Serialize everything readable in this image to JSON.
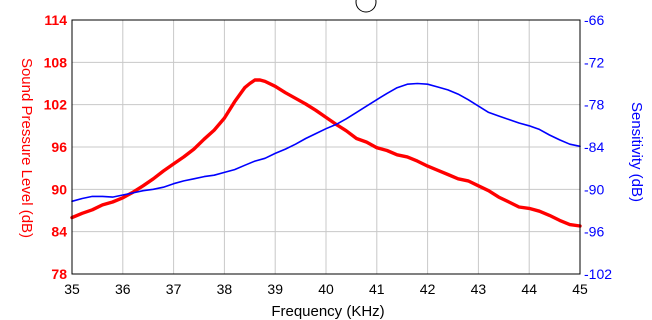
{
  "chart_data": {
    "type": "line",
    "xlabel": "Frequency (KHz)",
    "ylabel": "Sound Pressure Level (dB)",
    "y2label": "Sensitivity (dB)",
    "xlim": [
      35,
      45
    ],
    "ylim": [
      78,
      114
    ],
    "y2lim": [
      -102,
      -66
    ],
    "x_ticks": [
      35,
      36,
      37,
      38,
      39,
      40,
      41,
      42,
      43,
      44,
      45
    ],
    "y_ticks": [
      78,
      84,
      90,
      96,
      102,
      108,
      114
    ],
    "y2_ticks": [
      -102,
      -96,
      -90,
      -84,
      -78,
      -72,
      -66
    ],
    "grid": true,
    "series": [
      {
        "axis": "left",
        "color": "#ff0000",
        "x": [
          35.0,
          35.2,
          35.4,
          35.6,
          35.8,
          36.0,
          36.2,
          36.4,
          36.6,
          36.8,
          37.0,
          37.2,
          37.4,
          37.6,
          37.8,
          38.0,
          38.2,
          38.4,
          38.5,
          38.6,
          38.7,
          38.8,
          39.0,
          39.2,
          39.4,
          39.6,
          39.8,
          40.0,
          40.2,
          40.4,
          40.6,
          40.8,
          41.0,
          41.2,
          41.4,
          41.6,
          41.8,
          42.0,
          42.2,
          42.4,
          42.6,
          42.8,
          43.0,
          43.2,
          43.4,
          43.6,
          43.8,
          44.0,
          44.2,
          44.4,
          44.6,
          44.8,
          45.0
        ],
        "values": [
          86.0,
          86.6,
          87.1,
          87.8,
          88.2,
          88.8,
          89.6,
          90.5,
          91.5,
          92.6,
          93.6,
          94.6,
          95.7,
          97.1,
          98.4,
          100.1,
          102.4,
          104.4,
          105.0,
          105.5,
          105.5,
          105.3,
          104.6,
          103.7,
          102.9,
          102.1,
          101.2,
          100.2,
          99.2,
          98.3,
          97.2,
          96.7,
          95.9,
          95.5,
          94.9,
          94.6,
          94.0,
          93.3,
          92.7,
          92.1,
          91.5,
          91.2,
          90.5,
          89.8,
          88.9,
          88.2,
          87.5,
          87.3,
          86.9,
          86.3,
          85.6,
          85.0,
          84.8
        ]
      },
      {
        "axis": "right",
        "color": "#0000ff",
        "x": [
          35.0,
          35.2,
          35.4,
          35.6,
          35.8,
          36.0,
          36.2,
          36.4,
          36.6,
          36.8,
          37.0,
          37.2,
          37.4,
          37.6,
          37.8,
          38.0,
          38.2,
          38.4,
          38.6,
          38.8,
          39.0,
          39.2,
          39.4,
          39.6,
          39.8,
          40.0,
          40.2,
          40.4,
          40.6,
          40.8,
          41.0,
          41.2,
          41.4,
          41.6,
          41.8,
          42.0,
          42.2,
          42.4,
          42.6,
          42.8,
          43.0,
          43.2,
          43.4,
          43.6,
          43.8,
          44.0,
          44.2,
          44.4,
          44.6,
          44.8,
          45.0
        ],
        "values": [
          -91.7,
          -91.3,
          -91.0,
          -91.0,
          -91.1,
          -90.8,
          -90.5,
          -90.2,
          -90.0,
          -89.7,
          -89.2,
          -88.8,
          -88.5,
          -88.2,
          -88.0,
          -87.6,
          -87.2,
          -86.6,
          -86.0,
          -85.6,
          -84.9,
          -84.3,
          -83.6,
          -82.8,
          -82.1,
          -81.4,
          -80.8,
          -80.0,
          -79.1,
          -78.2,
          -77.3,
          -76.4,
          -75.6,
          -75.1,
          -75.0,
          -75.1,
          -75.5,
          -75.9,
          -76.5,
          -77.3,
          -78.2,
          -79.1,
          -79.6,
          -80.1,
          -80.6,
          -81.0,
          -81.5,
          -82.3,
          -83.0,
          -83.6,
          -83.9
        ]
      }
    ]
  }
}
